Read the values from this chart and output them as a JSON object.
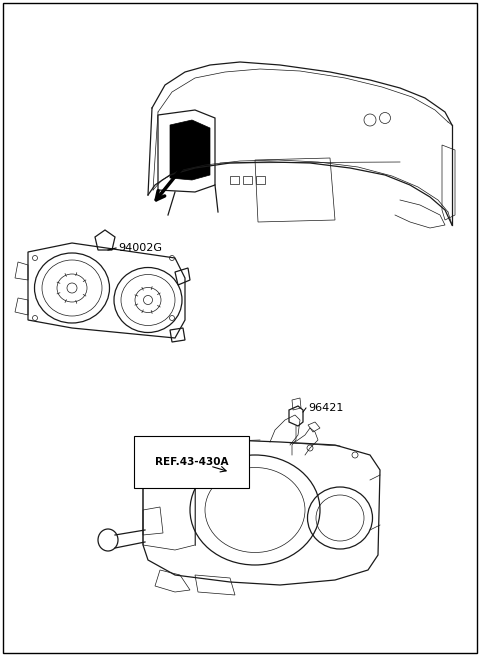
{
  "background_color": "#ffffff",
  "border_color": "#000000",
  "label_94002G": "94002G",
  "label_96421": "96421",
  "label_ref": "REF.43-430A",
  "fig_width": 4.8,
  "fig_height": 6.56,
  "dpi": 100,
  "border_linewidth": 1.0,
  "text_color": "#000000",
  "lc": "#1a1a1a",
  "lw_main": 0.9,
  "lw_thin": 0.5,
  "lw_thick": 1.2
}
